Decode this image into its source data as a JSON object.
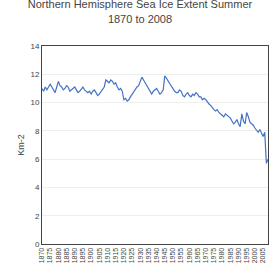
{
  "chart_data": {
    "type": "line",
    "title": "Northern Hemisphere Sea Ice Extent Summer\n1870 to 2008",
    "ylabel": "Km-2",
    "x": [
      1870,
      1871,
      1872,
      1873,
      1874,
      1875,
      1876,
      1877,
      1878,
      1879,
      1880,
      1881,
      1882,
      1883,
      1884,
      1885,
      1886,
      1887,
      1888,
      1889,
      1890,
      1891,
      1892,
      1893,
      1894,
      1895,
      1896,
      1897,
      1898,
      1899,
      1900,
      1901,
      1902,
      1903,
      1904,
      1905,
      1906,
      1907,
      1908,
      1909,
      1910,
      1911,
      1912,
      1913,
      1914,
      1915,
      1916,
      1917,
      1918,
      1919,
      1920,
      1921,
      1922,
      1923,
      1924,
      1925,
      1926,
      1927,
      1928,
      1929,
      1930,
      1931,
      1932,
      1933,
      1934,
      1935,
      1936,
      1937,
      1938,
      1939,
      1940,
      1941,
      1942,
      1943,
      1944,
      1945,
      1946,
      1947,
      1948,
      1949,
      1950,
      1951,
      1952,
      1953,
      1954,
      1955,
      1956,
      1957,
      1958,
      1959,
      1960,
      1961,
      1962,
      1963,
      1964,
      1965,
      1966,
      1967,
      1968,
      1969,
      1970,
      1971,
      1972,
      1973,
      1974,
      1975,
      1976,
      1977,
      1978,
      1979,
      1980,
      1981,
      1982,
      1983,
      1984,
      1985,
      1986,
      1987,
      1988,
      1989,
      1990,
      1991,
      1992,
      1993,
      1994,
      1995,
      1996,
      1997,
      1998,
      1999,
      2000,
      2001,
      2002,
      2003,
      2004,
      2005,
      2006,
      2007,
      2008
    ],
    "values": [
      11.0,
      10.8,
      11.1,
      10.9,
      11.1,
      11.3,
      11.1,
      10.9,
      10.7,
      11.1,
      11.5,
      11.2,
      11.1,
      10.9,
      11.0,
      11.2,
      11.1,
      10.8,
      10.9,
      11.0,
      11.1,
      10.9,
      10.7,
      10.8,
      11.0,
      11.1,
      10.9,
      10.8,
      10.7,
      10.8,
      10.6,
      10.8,
      10.9,
      10.7,
      10.5,
      10.6,
      10.8,
      11.0,
      11.1,
      11.6,
      11.5,
      11.4,
      11.6,
      11.5,
      11.3,
      11.4,
      11.1,
      10.9,
      11.0,
      10.8,
      10.2,
      10.3,
      10.1,
      10.2,
      10.4,
      10.6,
      10.8,
      11.0,
      11.1,
      11.2,
      11.5,
      11.8,
      11.6,
      11.4,
      11.2,
      11.0,
      10.8,
      10.6,
      10.8,
      10.9,
      11.0,
      10.8,
      10.6,
      10.7,
      10.9,
      11.9,
      11.7,
      11.5,
      11.3,
      11.1,
      10.9,
      10.8,
      10.7,
      10.7,
      10.9,
      10.8,
      10.5,
      10.4,
      10.6,
      10.7,
      10.5,
      10.4,
      10.6,
      10.5,
      10.7,
      10.6,
      10.4,
      10.4,
      10.2,
      10.3,
      10.2,
      10.0,
      9.9,
      9.8,
      9.6,
      9.5,
      9.4,
      9.5,
      9.3,
      9.2,
      9.1,
      9.0,
      9.2,
      9.1,
      9.0,
      8.9,
      8.7,
      8.5,
      8.6,
      8.8,
      8.5,
      8.3,
      9.2,
      8.7,
      8.5,
      9.3,
      9.0,
      8.6,
      8.5,
      8.4,
      8.2,
      8.0,
      7.9,
      8.1,
      7.8,
      7.6,
      7.9,
      5.7,
      6.0
    ],
    "color": "#4472C4",
    "xlim": [
      1870,
      2008
    ],
    "xticks": [
      1870,
      1875,
      1880,
      1885,
      1890,
      1895,
      1900,
      1905,
      1910,
      1915,
      1920,
      1925,
      1930,
      1935,
      1940,
      1945,
      1950,
      1955,
      1960,
      1965,
      1970,
      1975,
      1980,
      1985,
      1990,
      1995,
      2000,
      2005
    ],
    "ylim": [
      0,
      14
    ],
    "yticks": [
      0,
      2,
      4,
      6,
      8,
      10,
      12,
      14
    ],
    "grid": true
  }
}
